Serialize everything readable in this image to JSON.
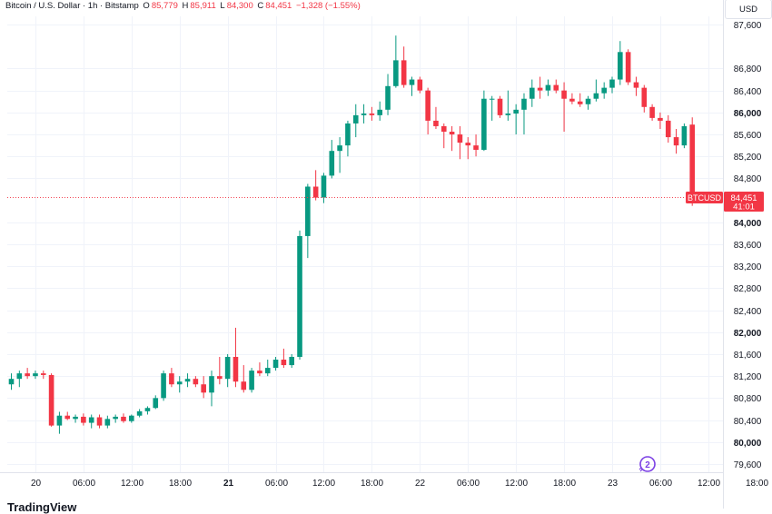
{
  "legend": {
    "title": "Bitcoin / U.S. Dollar · 1h · Bitstamp",
    "o_label": "O",
    "o_value": "85,779",
    "h_label": "H",
    "h_value": "85,911",
    "l_label": "L",
    "l_value": "84,300",
    "c_label": "C",
    "c_value": "84,451",
    "change": "−1,328 (−1.55%)"
  },
  "currency": "USD",
  "price_tag": {
    "symbol": "BTCUSD",
    "price": "84,451",
    "countdown": "41:01"
  },
  "watermark": "TradingView",
  "colors": {
    "up": "#089981",
    "down": "#f23645",
    "grid": "#f0f3fa",
    "axis_text": "#131722"
  },
  "chart_data": {
    "type": "candlestick",
    "ylim": [
      79450,
      87750
    ],
    "yticks": [
      {
        "label": "87,600",
        "value": 87600,
        "bold": false
      },
      {
        "label": "86,800",
        "value": 86800,
        "bold": false
      },
      {
        "label": "86,400",
        "value": 86400,
        "bold": false
      },
      {
        "label": "86,000",
        "value": 86000,
        "bold": true
      },
      {
        "label": "85,600",
        "value": 85600,
        "bold": false
      },
      {
        "label": "85,200",
        "value": 85200,
        "bold": false
      },
      {
        "label": "84,800",
        "value": 84800,
        "bold": false
      },
      {
        "label": "84,000",
        "value": 84000,
        "bold": true
      },
      {
        "label": "83,600",
        "value": 83600,
        "bold": false
      },
      {
        "label": "83,200",
        "value": 83200,
        "bold": false
      },
      {
        "label": "82,800",
        "value": 82800,
        "bold": false
      },
      {
        "label": "82,400",
        "value": 82400,
        "bold": false
      },
      {
        "label": "82,000",
        "value": 82000,
        "bold": true
      },
      {
        "label": "81,600",
        "value": 81600,
        "bold": false
      },
      {
        "label": "81,200",
        "value": 81200,
        "bold": false
      },
      {
        "label": "80,800",
        "value": 80800,
        "bold": false
      },
      {
        "label": "80,400",
        "value": 80400,
        "bold": false
      },
      {
        "label": "80,000",
        "value": 80000,
        "bold": true
      },
      {
        "label": "79,600",
        "value": 79600,
        "bold": false
      }
    ],
    "xticks": [
      {
        "label": "20",
        "index": 3,
        "bold": false
      },
      {
        "label": "06:00",
        "index": 9,
        "bold": false
      },
      {
        "label": "12:00",
        "index": 15,
        "bold": false
      },
      {
        "label": "18:00",
        "index": 21,
        "bold": false
      },
      {
        "label": "21",
        "index": 27,
        "bold": true
      },
      {
        "label": "06:00",
        "index": 33,
        "bold": false
      },
      {
        "label": "12:00",
        "index": 39,
        "bold": false
      },
      {
        "label": "18:00",
        "index": 45,
        "bold": false
      },
      {
        "label": "22",
        "index": 51,
        "bold": false
      },
      {
        "label": "06:00",
        "index": 57,
        "bold": false
      },
      {
        "label": "12:00",
        "index": 63,
        "bold": false
      },
      {
        "label": "18:00",
        "index": 69,
        "bold": false
      },
      {
        "label": "23",
        "index": 75,
        "bold": false
      },
      {
        "label": "06:00",
        "index": 81,
        "bold": false
      },
      {
        "label": "12:00",
        "index": 87,
        "bold": false
      },
      {
        "label": "18:00",
        "index": 93,
        "bold": false
      }
    ],
    "last_price": 84451,
    "candles": [
      [
        81050,
        81250,
        80950,
        81150
      ],
      [
        81150,
        81300,
        81000,
        81250
      ],
      [
        81250,
        81350,
        81150,
        81200
      ],
      [
        81200,
        81300,
        81150,
        81250
      ],
      [
        81250,
        81300,
        81150,
        81220
      ],
      [
        81220,
        81250,
        80280,
        80300
      ],
      [
        80300,
        80550,
        80150,
        80480
      ],
      [
        80480,
        80550,
        80400,
        80420
      ],
      [
        80420,
        80500,
        80350,
        80460
      ],
      [
        80460,
        80520,
        80300,
        80350
      ],
      [
        80350,
        80500,
        80250,
        80450
      ],
      [
        80450,
        80500,
        80250,
        80300
      ],
      [
        80300,
        80480,
        80250,
        80420
      ],
      [
        80420,
        80500,
        80350,
        80460
      ],
      [
        80460,
        80520,
        80350,
        80380
      ],
      [
        80380,
        80500,
        80350,
        80480
      ],
      [
        80480,
        80600,
        80450,
        80560
      ],
      [
        80560,
        80650,
        80500,
        80620
      ],
      [
        80620,
        80850,
        80600,
        80800
      ],
      [
        80800,
        81300,
        80750,
        81250
      ],
      [
        81250,
        81350,
        81000,
        81050
      ],
      [
        81050,
        81200,
        80900,
        81100
      ],
      [
        81100,
        81250,
        81000,
        81150
      ],
      [
        81150,
        81200,
        81000,
        81050
      ],
      [
        81050,
        81200,
        80800,
        80900
      ],
      [
        80900,
        81300,
        80650,
        81200
      ],
      [
        81200,
        81550,
        81050,
        81150
      ],
      [
        81150,
        81600,
        81000,
        81550
      ],
      [
        81550,
        82080,
        81000,
        81100
      ],
      [
        81100,
        81400,
        80900,
        80950
      ],
      [
        80950,
        81350,
        80900,
        81300
      ],
      [
        81300,
        81450,
        81200,
        81250
      ],
      [
        81250,
        81500,
        81200,
        81350
      ],
      [
        81350,
        81550,
        81300,
        81500
      ],
      [
        81500,
        81700,
        81350,
        81400
      ],
      [
        81400,
        81600,
        81350,
        81550
      ],
      [
        81550,
        83850,
        81500,
        83750
      ],
      [
        83750,
        84700,
        83350,
        84650
      ],
      [
        84650,
        84950,
        84400,
        84450
      ],
      [
        84450,
        84900,
        84350,
        84850
      ],
      [
        84850,
        85500,
        84800,
        85300
      ],
      [
        85300,
        85550,
        84900,
        85400
      ],
      [
        85400,
        85850,
        85200,
        85800
      ],
      [
        85800,
        86150,
        85550,
        85950
      ],
      [
        85950,
        86150,
        85800,
        85980
      ],
      [
        85980,
        86100,
        85850,
        85950
      ],
      [
        85950,
        86200,
        85850,
        86050
      ],
      [
        86050,
        86700,
        85950,
        86480
      ],
      [
        86480,
        87400,
        86450,
        86950
      ],
      [
        86950,
        87200,
        86450,
        86500
      ],
      [
        86500,
        86650,
        86300,
        86600
      ],
      [
        86600,
        86650,
        86350,
        86400
      ],
      [
        86400,
        86450,
        85600,
        85850
      ],
      [
        85850,
        86100,
        85700,
        85750
      ],
      [
        85750,
        85800,
        85350,
        85650
      ],
      [
        85650,
        85750,
        85300,
        85600
      ],
      [
        85600,
        85750,
        85150,
        85450
      ],
      [
        85450,
        85550,
        85150,
        85400
      ],
      [
        85400,
        85600,
        85200,
        85320
      ],
      [
        85320,
        86400,
        85300,
        86250
      ],
      [
        86250,
        86300,
        85850,
        86250
      ],
      [
        86250,
        86300,
        85900,
        85950
      ],
      [
        85950,
        86400,
        85850,
        85980
      ],
      [
        85980,
        86150,
        85600,
        86050
      ],
      [
        86050,
        86350,
        85600,
        86250
      ],
      [
        86250,
        86600,
        86100,
        86450
      ],
      [
        86450,
        86650,
        86250,
        86400
      ],
      [
        86400,
        86600,
        86300,
        86500
      ],
      [
        86500,
        86600,
        86350,
        86400
      ],
      [
        86400,
        86550,
        85650,
        86250
      ],
      [
        86250,
        86350,
        86150,
        86200
      ],
      [
        86200,
        86350,
        86100,
        86150
      ],
      [
        86150,
        86300,
        86050,
        86250
      ],
      [
        86250,
        86600,
        86200,
        86350
      ],
      [
        86350,
        86550,
        86250,
        86450
      ],
      [
        86450,
        86650,
        86350,
        86600
      ],
      [
        86600,
        87300,
        86500,
        87100
      ],
      [
        87100,
        87150,
        86500,
        86550
      ],
      [
        86550,
        86650,
        86300,
        86450
      ],
      [
        86450,
        86500,
        86000,
        86100
      ],
      [
        86100,
        86150,
        85850,
        85900
      ],
      [
        85900,
        86000,
        85700,
        85850
      ],
      [
        85850,
        85950,
        85450,
        85550
      ],
      [
        85550,
        85700,
        85250,
        85400
      ],
      [
        85400,
        85800,
        85350,
        85750
      ],
      [
        85779,
        85911,
        84300,
        84451
      ]
    ]
  }
}
